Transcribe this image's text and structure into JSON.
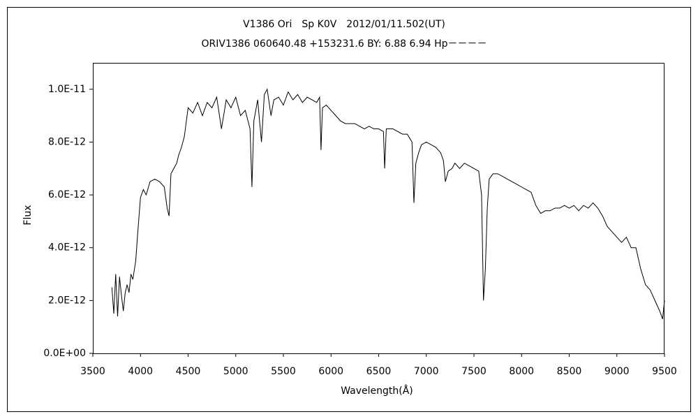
{
  "chart_data": {
    "type": "line",
    "title": "V1386 Ori　Sp K0V　2012/01/11.502(UT)",
    "subtitle": "ORIV1386 060640.48 +153231.6 BY: 6.88 6.94 Hp－－－－",
    "x_label": "Wavelength(Å)",
    "y_label": "Flux",
    "color": "#000000",
    "xlim": [
      3500,
      9500
    ],
    "xticks": [
      3500,
      4000,
      4500,
      5000,
      5500,
      6000,
      6500,
      7000,
      7500,
      8000,
      8500,
      9000,
      9500
    ],
    "ylim": [
      0,
      1.1e-11
    ],
    "yticks": [
      {
        "value": 0,
        "label": "0.0E+00"
      },
      {
        "value": 2e-12,
        "label": "2.0E-12"
      },
      {
        "value": 4e-12,
        "label": "4.0E-12"
      },
      {
        "value": 6e-12,
        "label": "6.0E-12"
      },
      {
        "value": 8e-12,
        "label": "8.0E-12"
      },
      {
        "value": 1e-11,
        "label": "1.0E-11"
      }
    ],
    "x": [
      3700,
      3720,
      3740,
      3760,
      3780,
      3800,
      3820,
      3840,
      3860,
      3880,
      3900,
      3920,
      3950,
      3970,
      4000,
      4030,
      4060,
      4100,
      4150,
      4200,
      4250,
      4280,
      4300,
      4320,
      4350,
      4380,
      4400,
      4430,
      4460,
      4500,
      4550,
      4600,
      4650,
      4700,
      4750,
      4800,
      4850,
      4900,
      4950,
      5000,
      5050,
      5100,
      5150,
      5170,
      5190,
      5230,
      5270,
      5300,
      5330,
      5370,
      5400,
      5450,
      5500,
      5550,
      5600,
      5650,
      5700,
      5750,
      5800,
      5850,
      5880,
      5895,
      5910,
      5950,
      6000,
      6050,
      6100,
      6150,
      6200,
      6250,
      6300,
      6350,
      6400,
      6450,
      6500,
      6550,
      6563,
      6580,
      6650,
      6700,
      6750,
      6800,
      6850,
      6870,
      6890,
      6920,
      6950,
      7000,
      7050,
      7100,
      7150,
      7180,
      7200,
      7230,
      7270,
      7300,
      7350,
      7400,
      7450,
      7500,
      7550,
      7580,
      7600,
      7620,
      7640,
      7660,
      7700,
      7750,
      7800,
      7850,
      7900,
      7950,
      8000,
      8050,
      8100,
      8150,
      8200,
      8250,
      8300,
      8350,
      8400,
      8450,
      8500,
      8550,
      8600,
      8650,
      8700,
      8750,
      8800,
      8850,
      8900,
      8950,
      9000,
      9050,
      9100,
      9150,
      9200,
      9250,
      9300,
      9350,
      9400,
      9450,
      9480,
      9500
    ],
    "values": [
      2.5e-12,
      1.5e-12,
      3e-12,
      1.4e-12,
      2.9e-12,
      2.2e-12,
      1.6e-12,
      2.3e-12,
      2.6e-12,
      2.3e-12,
      3e-12,
      2.8e-12,
      3.5e-12,
      4.5e-12,
      5.9e-12,
      6.2e-12,
      6e-12,
      6.5e-12,
      6.6e-12,
      6.5e-12,
      6.3e-12,
      5.5e-12,
      5.2e-12,
      6.8e-12,
      7e-12,
      7.2e-12,
      7.5e-12,
      7.8e-12,
      8.2e-12,
      9.3e-12,
      9.1e-12,
      9.5e-12,
      9e-12,
      9.5e-12,
      9.3e-12,
      9.7e-12,
      8.5e-12,
      9.6e-12,
      9.3e-12,
      9.7e-12,
      9e-12,
      9.2e-12,
      8.5e-12,
      6.3e-12,
      8.8e-12,
      9.6e-12,
      8e-12,
      9.8e-12,
      1e-11,
      9e-12,
      9.6e-12,
      9.7e-12,
      9.4e-12,
      9.9e-12,
      9.6e-12,
      9.8e-12,
      9.5e-12,
      9.7e-12,
      9.6e-12,
      9.5e-12,
      9.7e-12,
      7.7e-12,
      9.3e-12,
      9.4e-12,
      9.2e-12,
      9e-12,
      8.8e-12,
      8.7e-12,
      8.7e-12,
      8.7e-12,
      8.6e-12,
      8.5e-12,
      8.6e-12,
      8.5e-12,
      8.5e-12,
      8.4e-12,
      7e-12,
      8.5e-12,
      8.5e-12,
      8.4e-12,
      8.3e-12,
      8.3e-12,
      8e-12,
      5.7e-12,
      7.2e-12,
      7.6e-12,
      7.9e-12,
      8e-12,
      7.9e-12,
      7.8e-12,
      7.6e-12,
      7.3e-12,
      6.5e-12,
      6.9e-12,
      7e-12,
      7.2e-12,
      7e-12,
      7.2e-12,
      7.1e-12,
      7e-12,
      6.9e-12,
      6e-12,
      2e-12,
      3.2e-12,
      5.5e-12,
      6.6e-12,
      6.8e-12,
      6.8e-12,
      6.7e-12,
      6.6e-12,
      6.5e-12,
      6.4e-12,
      6.3e-12,
      6.2e-12,
      6.1e-12,
      5.6e-12,
      5.3e-12,
      5.4e-12,
      5.4e-12,
      5.5e-12,
      5.5e-12,
      5.6e-12,
      5.5e-12,
      5.6e-12,
      5.4e-12,
      5.6e-12,
      5.5e-12,
      5.7e-12,
      5.5e-12,
      5.2e-12,
      4.8e-12,
      4.6e-12,
      4.4e-12,
      4.2e-12,
      4.4e-12,
      4e-12,
      4e-12,
      3.2e-12,
      2.6e-12,
      2.4e-12,
      2e-12,
      1.6e-12,
      1.3e-12,
      2e-12
    ]
  }
}
